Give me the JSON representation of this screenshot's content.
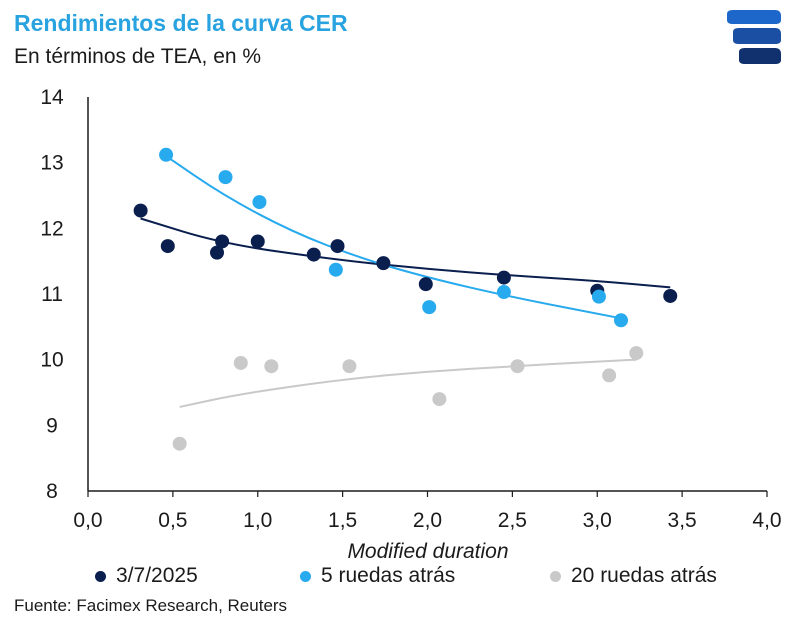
{
  "header": {
    "title": "Rendimientos de la curva CER",
    "subtitle": "En términos de TEA, en %"
  },
  "footer": {
    "source": "Fuente: Facimex Research, Reuters"
  },
  "colors": {
    "title": "#29a3e0",
    "series_3_7": "#0b1f4f",
    "series_5": "#27aaee",
    "series_20": "#c9c9c9",
    "axis": "#1b1b1b",
    "logo": "#1c67c9"
  },
  "logo": {
    "icon": "facimex-logo"
  },
  "chart_data": {
    "type": "scatter",
    "title": "Rendimientos de la curva CER",
    "subtitle": "En términos de TEA, en %",
    "xlabel": "Modified duration",
    "ylabel": "",
    "xlim": [
      0,
      4
    ],
    "ylim": [
      8,
      14
    ],
    "x_ticks": [
      "0,0",
      "0,5",
      "1,0",
      "1,5",
      "2,0",
      "2,5",
      "3,0",
      "3,5",
      "4,0"
    ],
    "y_ticks": [
      "8",
      "9",
      "10",
      "11",
      "12",
      "13",
      "14"
    ],
    "grid": false,
    "legend_position": "bottom",
    "series": [
      {
        "name": "3/7/2025",
        "color": "#0b1f4f",
        "points": [
          [
            0.31,
            12.27
          ],
          [
            0.47,
            11.73
          ],
          [
            0.76,
            11.63
          ],
          [
            0.79,
            11.8
          ],
          [
            1.0,
            11.8
          ],
          [
            1.33,
            11.6
          ],
          [
            1.47,
            11.73
          ],
          [
            1.74,
            11.47
          ],
          [
            1.99,
            11.15
          ],
          [
            2.45,
            11.25
          ],
          [
            3.0,
            11.05
          ],
          [
            3.43,
            10.97
          ]
        ],
        "trend": [
          [
            0.31,
            12.15
          ],
          [
            0.8,
            11.76
          ],
          [
            1.5,
            11.51
          ],
          [
            2.0,
            11.38
          ],
          [
            2.5,
            11.28
          ],
          [
            3.0,
            11.2
          ],
          [
            3.43,
            11.1
          ]
        ]
      },
      {
        "name": "5 ruedas atrás",
        "color": "#27aaee",
        "points": [
          [
            0.46,
            13.12
          ],
          [
            0.81,
            12.78
          ],
          [
            1.01,
            12.4
          ],
          [
            1.46,
            11.37
          ],
          [
            2.01,
            10.8
          ],
          [
            2.45,
            11.03
          ],
          [
            3.01,
            10.96
          ],
          [
            3.14,
            10.6
          ]
        ],
        "trend": [
          [
            0.46,
            13.1
          ],
          [
            0.8,
            12.5
          ],
          [
            1.2,
            11.95
          ],
          [
            1.6,
            11.55
          ],
          [
            2.0,
            11.25
          ],
          [
            2.5,
            10.95
          ],
          [
            3.14,
            10.63
          ]
        ]
      },
      {
        "name": "20 ruedas atrás",
        "color": "#c9c9c9",
        "points": [
          [
            0.54,
            8.72
          ],
          [
            0.9,
            9.95
          ],
          [
            1.08,
            9.9
          ],
          [
            1.54,
            9.9
          ],
          [
            2.07,
            9.4
          ],
          [
            2.53,
            9.9
          ],
          [
            3.07,
            9.76
          ],
          [
            3.23,
            10.1
          ]
        ],
        "trend": [
          [
            0.54,
            9.28
          ],
          [
            0.9,
            9.48
          ],
          [
            1.5,
            9.7
          ],
          [
            2.0,
            9.82
          ],
          [
            2.5,
            9.9
          ],
          [
            3.0,
            9.97
          ],
          [
            3.23,
            10.0
          ]
        ]
      }
    ]
  }
}
